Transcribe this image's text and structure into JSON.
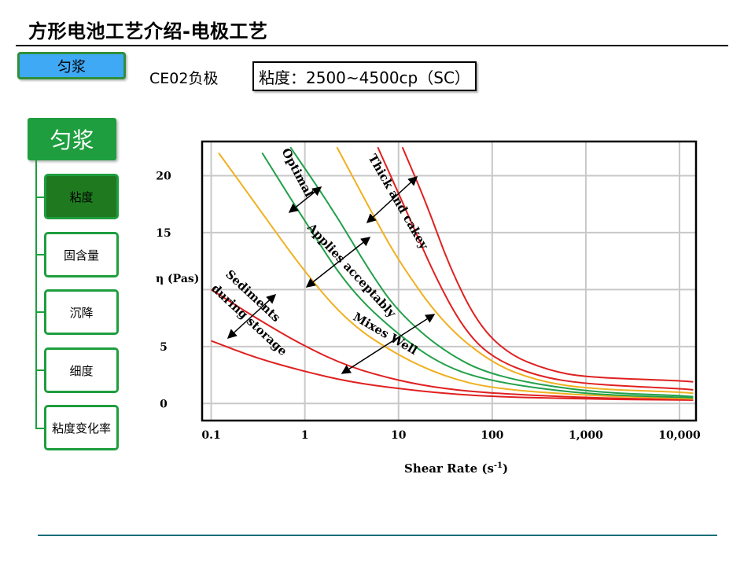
{
  "page": {
    "title": "方形电池工艺介绍-电极工艺",
    "tag": "匀浆",
    "sample_label": "CE02负极",
    "viscosity_spec": "粘度：2500~4500cp（SC）"
  },
  "tree": {
    "root": "匀浆",
    "items": [
      {
        "label": "粘度",
        "active": true
      },
      {
        "label": "固含量",
        "active": false
      },
      {
        "label": "沉降",
        "active": false
      },
      {
        "label": "细度",
        "active": false
      },
      {
        "label": "粘度变化率",
        "active": false
      }
    ]
  },
  "chart_data": {
    "type": "line",
    "xlabel": "Shear Rate (s-1)",
    "ylabel": "η (Pas)",
    "x_scale": "log",
    "xlim": [
      0.08,
      15000
    ],
    "ylim": [
      -1.5,
      23
    ],
    "x_ticks": [
      0.1,
      1,
      10,
      100,
      1000,
      10000
    ],
    "x_tick_labels": [
      "0.1",
      "1",
      "10",
      "100",
      "1,000",
      "10,000"
    ],
    "y_ticks": [
      0,
      5,
      15,
      20
    ],
    "y_tick_labels": [
      "0",
      "5",
      "15",
      "20"
    ],
    "grid": true,
    "colors": {
      "red": "#e02020",
      "orange": "#f0b020",
      "green": "#22a04a"
    },
    "series": [
      {
        "color": "red",
        "points": [
          [
            0.1,
            5.5
          ],
          [
            0.3,
            4.0
          ],
          [
            1,
            2.8
          ],
          [
            3,
            1.9
          ],
          [
            10,
            1.3
          ],
          [
            30,
            0.9
          ],
          [
            100,
            0.6
          ],
          [
            1000,
            0.4
          ],
          [
            10000,
            0.3
          ],
          [
            14000,
            0.3
          ]
        ]
      },
      {
        "color": "red",
        "points": [
          [
            0.1,
            10
          ],
          [
            0.3,
            7.5
          ],
          [
            1,
            5.0
          ],
          [
            3,
            3.2
          ],
          [
            10,
            2.0
          ],
          [
            30,
            1.3
          ],
          [
            100,
            0.9
          ],
          [
            1000,
            0.5
          ],
          [
            10000,
            0.35
          ],
          [
            14000,
            0.3
          ]
        ]
      },
      {
        "color": "orange",
        "points": [
          [
            0.12,
            22
          ],
          [
            0.3,
            17.5
          ],
          [
            1,
            11.5
          ],
          [
            3,
            7.0
          ],
          [
            10,
            4.2
          ],
          [
            30,
            2.4
          ],
          [
            100,
            1.3
          ],
          [
            1000,
            0.7
          ],
          [
            10000,
            0.45
          ],
          [
            14000,
            0.4
          ]
        ]
      },
      {
        "color": "green",
        "points": [
          [
            0.35,
            22
          ],
          [
            1,
            16
          ],
          [
            3,
            10
          ],
          [
            10,
            6.0
          ],
          [
            30,
            3.3
          ],
          [
            100,
            1.9
          ],
          [
            1000,
            0.8
          ],
          [
            10000,
            0.55
          ],
          [
            14000,
            0.5
          ]
        ]
      },
      {
        "color": "green",
        "points": [
          [
            0.7,
            22.5
          ],
          [
            2,
            17
          ],
          [
            5,
            11.5
          ],
          [
            10,
            8.0
          ],
          [
            30,
            4.6
          ],
          [
            100,
            2.4
          ],
          [
            1000,
            1.0
          ],
          [
            10000,
            0.7
          ],
          [
            14000,
            0.6
          ]
        ]
      },
      {
        "color": "orange",
        "points": [
          [
            2.2,
            22.5
          ],
          [
            5,
            17
          ],
          [
            10,
            12.5
          ],
          [
            30,
            7.0
          ],
          [
            100,
            3.5
          ],
          [
            300,
            2.0
          ],
          [
            1000,
            1.3
          ],
          [
            10000,
            1.0
          ],
          [
            14000,
            0.9
          ]
        ]
      },
      {
        "color": "red",
        "points": [
          [
            6,
            22.5
          ],
          [
            12,
            17
          ],
          [
            25,
            11
          ],
          [
            50,
            6.5
          ],
          [
            100,
            4.0
          ],
          [
            300,
            2.4
          ],
          [
            1000,
            1.7
          ],
          [
            10000,
            1.3
          ],
          [
            14000,
            1.2
          ]
        ]
      },
      {
        "color": "red",
        "points": [
          [
            11,
            22.5
          ],
          [
            20,
            17.5
          ],
          [
            35,
            12
          ],
          [
            70,
            7.0
          ],
          [
            150,
            4.3
          ],
          [
            400,
            2.9
          ],
          [
            1000,
            2.3
          ],
          [
            10000,
            2.0
          ],
          [
            14000,
            1.9
          ]
        ]
      }
    ],
    "annotations": [
      {
        "text": "Optimal"
      },
      {
        "text": "Thick and cakey"
      },
      {
        "text": "Applies acceptably"
      },
      {
        "text": "Mixes Well"
      },
      {
        "text": "Sediments"
      },
      {
        "text": "during storage"
      }
    ]
  }
}
